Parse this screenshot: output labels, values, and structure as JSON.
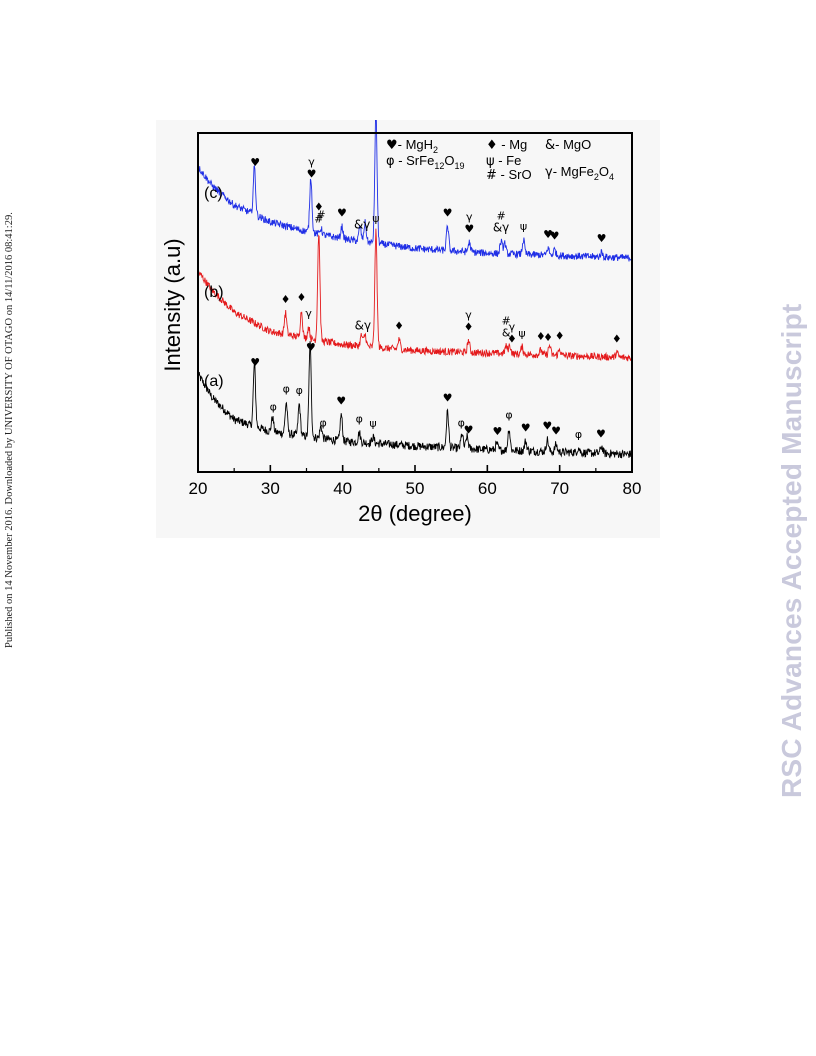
{
  "page": {
    "side_note": "Published on 14 November 2016. Downloaded by UNIVERSITY OF OTAGO on 14/11/2016 08:41:29.",
    "watermark": "RSC Advances Accepted Manuscript"
  },
  "chart_data": {
    "type": "line",
    "title": "",
    "xlabel": "2θ (degree)",
    "ylabel": "Intensity (a.u)",
    "xlim": [
      20,
      80
    ],
    "xticks": [
      20,
      30,
      40,
      50,
      60,
      70,
      80
    ],
    "grid": false,
    "legend": {
      "placement": "top",
      "entries": [
        {
          "symbol": "♥",
          "text": "- MgH",
          "sub": "2",
          "tail": ""
        },
        {
          "symbol": "♦",
          "text": " - Mg",
          "sub": "",
          "tail": ""
        },
        {
          "symbol": "&",
          "text": "- MgO",
          "sub": "",
          "tail": ""
        },
        {
          "symbol": "φ",
          "text": " - SrFe",
          "sub": "12",
          "tail": "O",
          "sub2": "19"
        },
        {
          "symbol": "ψ",
          "text": " - Fe",
          "sub": "",
          "tail": ""
        },
        {
          "symbol": "γ",
          "text": "- MgFe",
          "sub": "2",
          "tail": "O",
          "sub2": "4"
        },
        {
          "symbol": "#",
          "text": " - SrO",
          "sub": "",
          "tail": ""
        }
      ]
    },
    "series": [
      {
        "name": "(a)",
        "color": "#000000",
        "background": [
          [
            20,
            0.7
          ],
          [
            22,
            0.5
          ],
          [
            25,
            0.32
          ],
          [
            30,
            0.22
          ],
          [
            40,
            0.14
          ],
          [
            50,
            0.1
          ],
          [
            60,
            0.07
          ],
          [
            80,
            0.03
          ]
        ],
        "peaks": [
          [
            27.8,
            0.52
          ],
          [
            30.3,
            0.12
          ],
          [
            32.2,
            0.26
          ],
          [
            34.0,
            0.26
          ],
          [
            35.5,
            0.78
          ],
          [
            37.0,
            0.1
          ],
          [
            39.8,
            0.22
          ],
          [
            42.3,
            0.08
          ],
          [
            44.2,
            0.05
          ],
          [
            54.5,
            0.3
          ],
          [
            56.5,
            0.12
          ],
          [
            57.2,
            0.1
          ],
          [
            61.3,
            0.05
          ],
          [
            63.0,
            0.18
          ],
          [
            65.3,
            0.08
          ],
          [
            68.3,
            0.1
          ],
          [
            69.5,
            0.06
          ],
          [
            72.6,
            0.04
          ],
          [
            75.8,
            0.06
          ]
        ],
        "noise": 0.035,
        "markers": [
          {
            "x": 27.9,
            "sym": "♥"
          },
          {
            "x": 30.4,
            "sym": "φ"
          },
          {
            "x": 32.2,
            "sym": "φ"
          },
          {
            "x": 34.0,
            "sym": "φ"
          },
          {
            "x": 35.6,
            "sym": "♥"
          },
          {
            "x": 37.3,
            "sym": "φ"
          },
          {
            "x": 39.8,
            "sym": "♥"
          },
          {
            "x": 42.3,
            "sym": "φ"
          },
          {
            "x": 44.2,
            "sym": "ψ"
          },
          {
            "x": 54.5,
            "sym": "♥"
          },
          {
            "x": 56.4,
            "sym": "φ"
          },
          {
            "x": 57.4,
            "sym": "♥"
          },
          {
            "x": 61.4,
            "sym": "♥"
          },
          {
            "x": 63.0,
            "sym": "φ"
          },
          {
            "x": 65.3,
            "sym": "♥"
          },
          {
            "x": 68.3,
            "sym": "♥"
          },
          {
            "x": 69.5,
            "sym": "♥"
          },
          {
            "x": 72.6,
            "sym": "φ"
          },
          {
            "x": 75.7,
            "sym": "♥"
          }
        ]
      },
      {
        "name": "(b)",
        "color": "#e41a1c",
        "background": [
          [
            20,
            0.78
          ],
          [
            22,
            0.62
          ],
          [
            25,
            0.44
          ],
          [
            30,
            0.28
          ],
          [
            35,
            0.22
          ],
          [
            40,
            0.17
          ],
          [
            50,
            0.12
          ],
          [
            60,
            0.1
          ],
          [
            80,
            0.06
          ]
        ],
        "peaks": [
          [
            32.1,
            0.18
          ],
          [
            34.3,
            0.22
          ],
          [
            35.3,
            0.1
          ],
          [
            36.7,
            0.9
          ],
          [
            42.6,
            0.09
          ],
          [
            43.1,
            0.1
          ],
          [
            44.6,
            0.96
          ],
          [
            47.8,
            0.08
          ],
          [
            57.4,
            0.1
          ],
          [
            62.6,
            0.06
          ],
          [
            63.1,
            0.07
          ],
          [
            64.8,
            0.06
          ],
          [
            67.4,
            0.04
          ],
          [
            68.6,
            0.08
          ],
          [
            70.0,
            0.05
          ],
          [
            77.9,
            0.04
          ]
        ],
        "noise": 0.03,
        "markers": [
          {
            "x": 32.1,
            "sym": "♦"
          },
          {
            "x": 34.3,
            "sym": "♦"
          },
          {
            "x": 35.3,
            "sym": "γ"
          },
          {
            "x": 36.7,
            "sym": "#"
          },
          {
            "x": 36.7,
            "sym": "♦",
            "stack": 1
          },
          {
            "x": 42.8,
            "sym": "&γ"
          },
          {
            "x": 44.6,
            "sym": "ψ"
          },
          {
            "x": 47.8,
            "sym": "♦"
          },
          {
            "x": 57.4,
            "sym": "γ",
            "stack": 1
          },
          {
            "x": 57.4,
            "sym": "♦"
          },
          {
            "x": 62.6,
            "sym": "#",
            "stack": 1
          },
          {
            "x": 62.6,
            "sym": "&"
          },
          {
            "x": 63.4,
            "sym": "γ",
            "stack": 1
          },
          {
            "x": 63.4,
            "sym": "♦"
          },
          {
            "x": 64.8,
            "sym": "ψ"
          },
          {
            "x": 67.4,
            "sym": "♦"
          },
          {
            "x": 68.4,
            "sym": "♦"
          },
          {
            "x": 70.0,
            "sym": "♦"
          },
          {
            "x": 77.9,
            "sym": "♦"
          }
        ]
      },
      {
        "name": "(c)",
        "color": "#1f2ee6",
        "background": [
          [
            20,
            0.86
          ],
          [
            22,
            0.7
          ],
          [
            25,
            0.54
          ],
          [
            30,
            0.4
          ],
          [
            35,
            0.32
          ],
          [
            40,
            0.26
          ],
          [
            50,
            0.18
          ],
          [
            60,
            0.14
          ],
          [
            80,
            0.1
          ]
        ],
        "peaks": [
          [
            27.8,
            0.4
          ],
          [
            35.6,
            0.46
          ],
          [
            37.0,
            0.05
          ],
          [
            39.9,
            0.1
          ],
          [
            42.4,
            0.12
          ],
          [
            43.1,
            0.16
          ],
          [
            44.6,
            1.1
          ],
          [
            54.5,
            0.2
          ],
          [
            57.5,
            0.08
          ],
          [
            61.9,
            0.1
          ],
          [
            62.4,
            0.09
          ],
          [
            65.0,
            0.12
          ],
          [
            68.4,
            0.06
          ],
          [
            69.3,
            0.05
          ],
          [
            75.8,
            0.04
          ]
        ],
        "noise": 0.03,
        "markers": [
          {
            "x": 27.9,
            "sym": "♥"
          },
          {
            "x": 35.7,
            "sym": "γ",
            "stack": 1
          },
          {
            "x": 35.7,
            "sym": "♥"
          },
          {
            "x": 37.0,
            "sym": "#"
          },
          {
            "x": 39.9,
            "sym": "♥"
          },
          {
            "x": 42.7,
            "sym": "&γ"
          },
          {
            "x": 44.6,
            "sym": "ψ"
          },
          {
            "x": 54.5,
            "sym": "♥"
          },
          {
            "x": 57.5,
            "sym": "γ",
            "stack": 1
          },
          {
            "x": 57.5,
            "sym": "♥"
          },
          {
            "x": 61.9,
            "sym": "#",
            "stack": 1
          },
          {
            "x": 61.9,
            "sym": "&γ"
          },
          {
            "x": 65.0,
            "sym": "ψ"
          },
          {
            "x": 68.4,
            "sym": "♥"
          },
          {
            "x": 69.3,
            "sym": "♥"
          },
          {
            "x": 75.8,
            "sym": "♥"
          }
        ]
      }
    ]
  }
}
